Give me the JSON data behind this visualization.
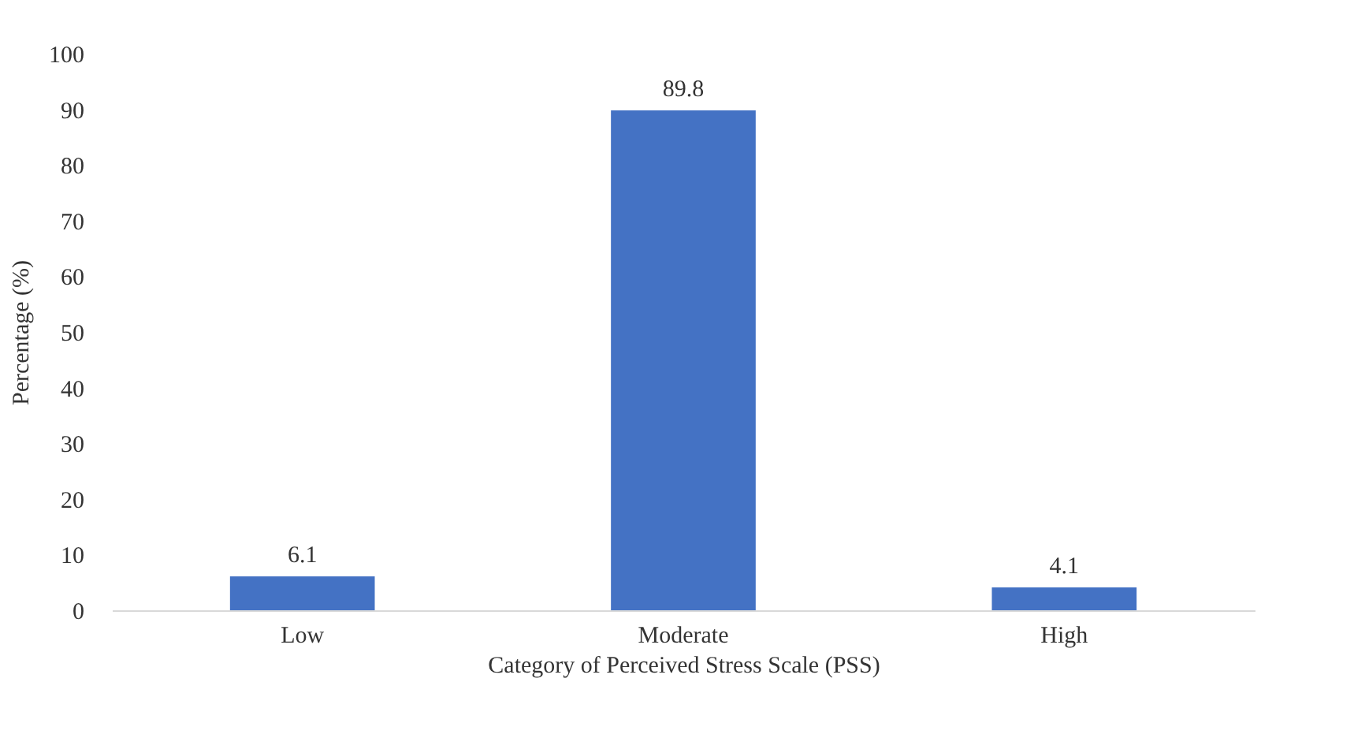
{
  "chart_data": {
    "type": "bar",
    "xlabel": "Category of Perceived Stress Scale (PSS)",
    "ylabel": "Percentage (%)",
    "categories": [
      "Low",
      "Moderate",
      "High"
    ],
    "values": [
      6.1,
      89.8,
      4.1
    ],
    "color": "#4472c4",
    "ylim": [
      0,
      100
    ],
    "yticks": [
      0,
      10,
      20,
      30,
      40,
      50,
      60,
      70,
      80,
      90,
      100
    ],
    "grid": false,
    "data_labels": true
  }
}
